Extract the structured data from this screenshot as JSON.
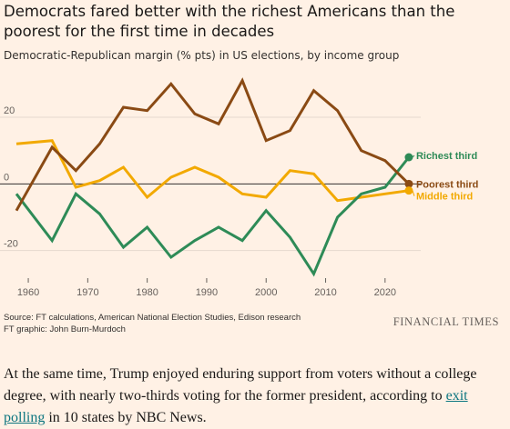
{
  "chart_data": {
    "type": "line",
    "title": "Democrats fared better with the richest Americans than the poorest for the first time in decades",
    "subtitle": "Democratic-Republican margin (% pts) in US elections, by income group",
    "xlabel": "",
    "ylabel": "",
    "xlim": [
      1958,
      2026
    ],
    "ylim": [
      -28,
      32
    ],
    "x_ticks": [
      1960,
      1970,
      1980,
      1990,
      2000,
      2010,
      2020
    ],
    "y_ticks": [
      -20,
      0,
      20
    ],
    "grid": "horizontal",
    "legend": "direct labels at line ends (right)",
    "x": [
      1958,
      1964,
      1968,
      1972,
      1976,
      1980,
      1984,
      1988,
      1992,
      1996,
      2000,
      2004,
      2008,
      2012,
      2016,
      2020,
      2024
    ],
    "series": [
      {
        "name": "Richest third",
        "color": "#2e8b57",
        "values": [
          -3,
          -17,
          -3,
          -9,
          -19,
          -13,
          -22,
          -17,
          -13,
          -17,
          -8,
          -16,
          -27,
          -10,
          -3,
          -1,
          8
        ]
      },
      {
        "name": "Poorest third",
        "color": "#8a4a14",
        "values": [
          -8,
          11,
          4,
          12,
          23,
          22,
          30,
          21,
          18,
          31,
          13,
          16,
          28,
          22,
          10,
          7,
          0
        ]
      },
      {
        "name": "Middle third",
        "color": "#f2a900",
        "values": [
          12,
          13,
          -1,
          1,
          5,
          -4,
          2,
          5,
          2,
          -3,
          -4,
          4,
          3,
          -5,
          -4,
          -3,
          -2
        ]
      }
    ]
  },
  "footer": {
    "source_line": "Source: FT calculations, American National Election Studies, Edison research",
    "graphic_line": "FT graphic: John Burn-Murdoch",
    "brand": "FINANCIAL TIMES"
  },
  "article": {
    "before_link": "At the same time, Trump enjoyed enduring support from voters without a college degree, with nearly two-thirds voting for the former president, according to ",
    "link_text": "exit polling",
    "after_link": " in 10 states by NBC News."
  },
  "colors": {
    "background": "#fff1e5",
    "zero_line": "#33302e",
    "grid": "#e6d9ce",
    "link": "#0d7680"
  }
}
